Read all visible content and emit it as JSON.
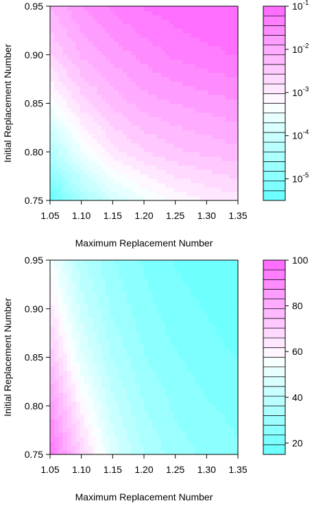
{
  "chart_data": [
    {
      "type": "heatmap",
      "title": "",
      "xlabel": "Maximum Replacement Number",
      "ylabel": "Initial Replacement Number",
      "xlim": [
        1.05,
        1.35
      ],
      "ylim": [
        0.75,
        0.95
      ],
      "x_ticks": [
        "1.05",
        "1.10",
        "1.15",
        "1.20",
        "1.25",
        "1.30",
        "1.35"
      ],
      "y_ticks": [
        "0.75",
        "0.80",
        "0.85",
        "0.90",
        "0.95"
      ],
      "colorbar": {
        "scale": "log10",
        "range": [
          -5.5,
          -1
        ],
        "levels": 20,
        "low_color": "#66ffff",
        "high_color": "#ff66ff",
        "tick_values": [
          -1,
          -2,
          -3,
          -4,
          -5
        ],
        "tick_labels": [
          {
            "base": "10",
            "exp": "-1"
          },
          {
            "base": "10",
            "exp": "-2"
          },
          {
            "base": "10",
            "exp": "-3"
          },
          {
            "base": "10",
            "exp": "-4"
          },
          {
            "base": "10",
            "exp": "-5"
          }
        ]
      },
      "surface": {
        "x": [
          1.05,
          1.1,
          1.15,
          1.2,
          1.25,
          1.3,
          1.35
        ],
        "y": [
          0.75,
          0.8,
          0.85,
          0.9,
          0.95
        ],
        "z": [
          [
            -5.5,
            -4.6,
            -3.9,
            -3.5,
            -3.2,
            -3.0,
            -2.9
          ],
          [
            -4.4,
            -3.5,
            -2.9,
            -2.6,
            -2.4,
            -2.3,
            -2.2
          ],
          [
            -3.4,
            -2.7,
            -2.3,
            -2.0,
            -1.9,
            -1.8,
            -1.7
          ],
          [
            -2.6,
            -2.1,
            -1.8,
            -1.6,
            -1.4,
            -1.3,
            -1.2
          ],
          [
            -2.1,
            -1.7,
            -1.4,
            -1.2,
            -1.1,
            -1.0,
            -1.0
          ]
        ]
      }
    },
    {
      "type": "heatmap",
      "title": "",
      "xlabel": "Maximum Replacement Number",
      "ylabel": "Initial Replacement Number",
      "xlim": [
        1.05,
        1.35
      ],
      "ylim": [
        0.75,
        0.95
      ],
      "x_ticks": [
        "1.05",
        "1.10",
        "1.15",
        "1.20",
        "1.25",
        "1.30",
        "1.35"
      ],
      "y_ticks": [
        "0.75",
        "0.80",
        "0.85",
        "0.90",
        "0.95"
      ],
      "colorbar": {
        "scale": "linear",
        "range": [
          15,
          100
        ],
        "levels": 20,
        "low_color": "#66ffff",
        "high_color": "#ff66ff",
        "tick_values": [
          100,
          80,
          60,
          40,
          20
        ],
        "tick_labels": [
          {
            "base": "100",
            "exp": ""
          },
          {
            "base": "80",
            "exp": ""
          },
          {
            "base": "60",
            "exp": ""
          },
          {
            "base": "40",
            "exp": ""
          },
          {
            "base": "20",
            "exp": ""
          }
        ]
      },
      "surface": {
        "x": [
          1.05,
          1.1,
          1.15,
          1.2,
          1.25,
          1.3,
          1.35
        ],
        "y": [
          0.75,
          0.8,
          0.85,
          0.9,
          0.95
        ],
        "z": [
          [
            96,
            70,
            48,
            36,
            30,
            27,
            24
          ],
          [
            86,
            60,
            42,
            32,
            27,
            24,
            22
          ],
          [
            74,
            50,
            36,
            28,
            24,
            21,
            19
          ],
          [
            64,
            43,
            31,
            25,
            21,
            19,
            17
          ],
          [
            56,
            37,
            28,
            23,
            19,
            17,
            16
          ]
        ]
      }
    }
  ]
}
